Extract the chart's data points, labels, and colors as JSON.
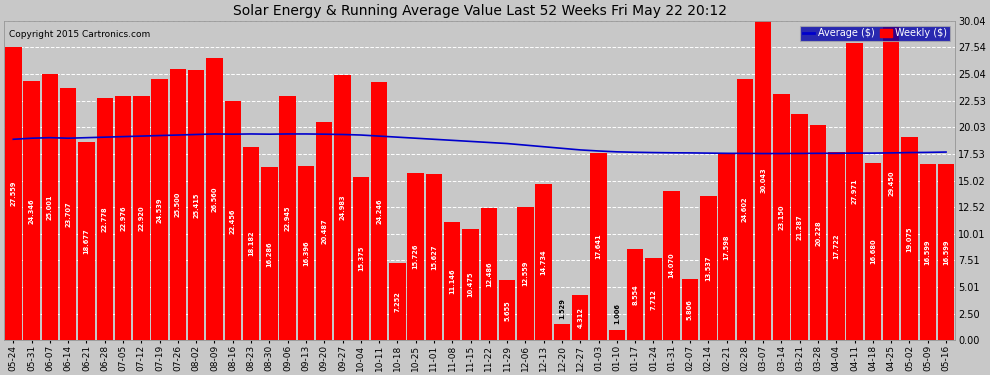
{
  "title": "Solar Energy & Running Average Value Last 52 Weeks Fri May 22 20:12",
  "copyright": "Copyright 2015 Cartronics.com",
  "bar_color": "#ff0000",
  "line_color": "#0000cc",
  "background_color": "#c8c8c8",
  "grid_color": "#ffffff",
  "ylim": [
    0,
    30.04
  ],
  "ytick_vals": [
    0.0,
    2.5,
    5.01,
    7.51,
    10.01,
    12.52,
    15.02,
    17.53,
    20.03,
    22.53,
    25.04,
    27.54,
    30.04
  ],
  "categories": [
    "05-24",
    "05-31",
    "06-07",
    "06-14",
    "06-21",
    "06-28",
    "07-05",
    "07-12",
    "07-19",
    "07-26",
    "08-02",
    "08-09",
    "08-16",
    "08-23",
    "08-30",
    "09-06",
    "09-13",
    "09-20",
    "09-27",
    "10-04",
    "10-11",
    "10-18",
    "10-25",
    "11-01",
    "11-08",
    "11-15",
    "11-22",
    "11-29",
    "12-06",
    "12-13",
    "12-20",
    "12-27",
    "01-03",
    "01-10",
    "01-17",
    "01-24",
    "01-31",
    "02-07",
    "02-14",
    "02-21",
    "02-28",
    "03-07",
    "03-14",
    "03-21",
    "03-28",
    "04-04",
    "04-11",
    "04-18",
    "04-25",
    "05-02",
    "05-09",
    "05-16"
  ],
  "weekly_values": [
    27.559,
    24.346,
    25.001,
    23.707,
    18.677,
    22.778,
    22.976,
    22.92,
    24.539,
    25.5,
    25.415,
    26.56,
    22.456,
    18.182,
    16.286,
    22.945,
    16.396,
    20.487,
    24.983,
    15.375,
    24.246,
    7.252,
    15.726,
    15.627,
    11.146,
    10.475,
    12.486,
    5.655,
    12.559,
    14.734,
    1.529,
    4.312,
    17.641,
    1.006,
    8.554,
    7.712,
    14.07,
    5.806,
    13.537,
    17.598,
    24.602,
    30.043,
    23.15,
    21.287,
    20.228,
    17.722,
    27.971,
    16.68,
    29.45,
    19.075,
    16.599,
    16.599
  ],
  "avg_values": [
    18.9,
    19.0,
    19.05,
    19.0,
    19.05,
    19.1,
    19.15,
    19.2,
    19.25,
    19.3,
    19.35,
    19.4,
    19.38,
    19.4,
    19.38,
    19.4,
    19.4,
    19.38,
    19.35,
    19.3,
    19.2,
    19.1,
    19.0,
    18.9,
    18.8,
    18.7,
    18.6,
    18.5,
    18.35,
    18.2,
    18.05,
    17.9,
    17.8,
    17.72,
    17.68,
    17.65,
    17.63,
    17.62,
    17.6,
    17.58,
    17.57,
    17.56,
    17.56,
    17.57,
    17.58,
    17.58,
    17.6,
    17.6,
    17.62,
    17.65,
    17.67,
    17.7
  ],
  "legend_avg_color": "#0000cc",
  "legend_avg_label": "Average ($)",
  "legend_weekly_label": "Weekly ($)",
  "legend_box_color": "#0000aa",
  "title_fontsize": 10,
  "tick_fontsize": 6.5,
  "value_fontsize": 4.8,
  "ytick_fontsize": 7
}
